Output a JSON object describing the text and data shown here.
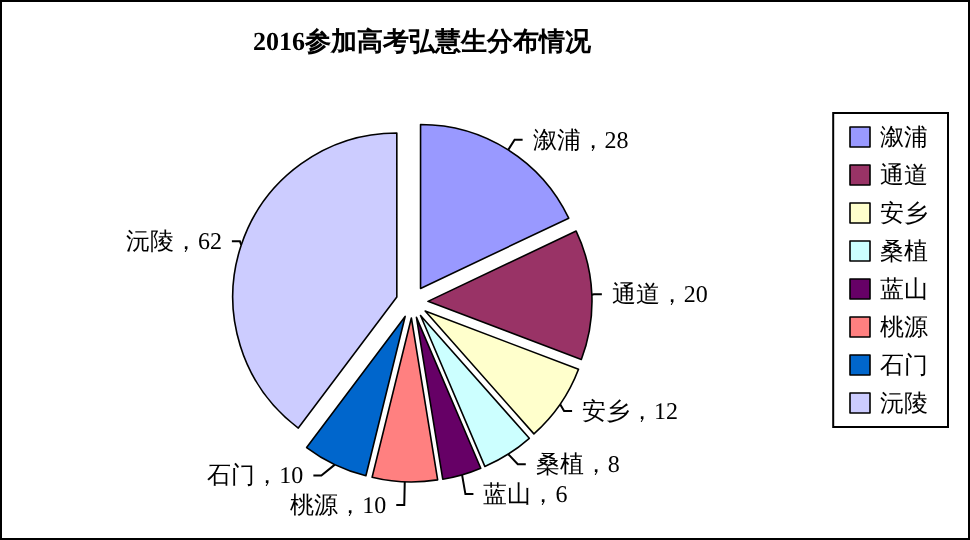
{
  "chart_data": {
    "type": "pie",
    "title": "2016参加高考弘慧生分布情况",
    "categories": [
      "溆浦",
      "通道",
      "安乡",
      "桑植",
      "蓝山",
      "桃源",
      "石门",
      "沅陵"
    ],
    "values": [
      28,
      20,
      12,
      8,
      6,
      10,
      10,
      62
    ],
    "colors": [
      "#9999ff",
      "#993366",
      "#ffffcc",
      "#ccffff",
      "#660066",
      "#ff8080",
      "#0066cc",
      "#ccccff"
    ],
    "value_labels": [
      "，28",
      "，20",
      "，12",
      "，8",
      "，6",
      "，10",
      "，10",
      "，62"
    ],
    "legend": "right"
  }
}
